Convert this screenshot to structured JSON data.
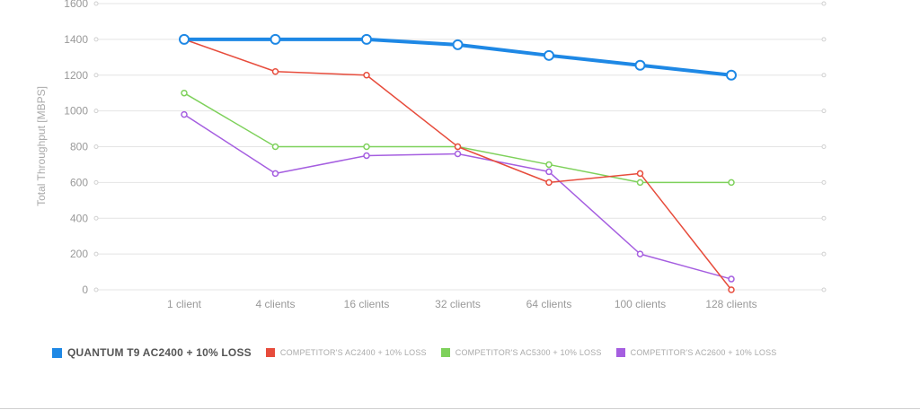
{
  "chart_data": {
    "type": "line",
    "title": "",
    "xlabel": "",
    "ylabel": "Total Throughput [MBPS]",
    "ylim": [
      0,
      1600
    ],
    "yticks": [
      "0",
      "200",
      "400",
      "600",
      "800",
      "1000",
      "1200",
      "1400",
      "1600"
    ],
    "categories": [
      "1 client",
      "4 clients",
      "16 clients",
      "32 clients",
      "64 clients",
      "100 clients",
      "128 clients"
    ],
    "grid": true,
    "legend_position": "bottom-left",
    "series": [
      {
        "name": "QUANTUM T9 AC2400 + 10% LOSS",
        "color": "#1e88e5",
        "emphasis": true,
        "values": [
          1400,
          1400,
          1400,
          1370,
          1310,
          1255,
          1200
        ]
      },
      {
        "name": "COMPETITOR'S AC2400 + 10% LOSS",
        "color": "#e74c3c",
        "emphasis": false,
        "values": [
          1400,
          1220,
          1200,
          800,
          600,
          650,
          0
        ]
      },
      {
        "name": "COMPETITOR'S AC5300 + 10% LOSS",
        "color": "#7ed15b",
        "emphasis": false,
        "values": [
          1100,
          800,
          800,
          800,
          700,
          600,
          600
        ]
      },
      {
        "name": "COMPETITOR'S AC2600 + 10% LOSS",
        "color": "#a55ee0",
        "emphasis": false,
        "values": [
          980,
          650,
          750,
          760,
          660,
          200,
          60
        ]
      }
    ]
  }
}
